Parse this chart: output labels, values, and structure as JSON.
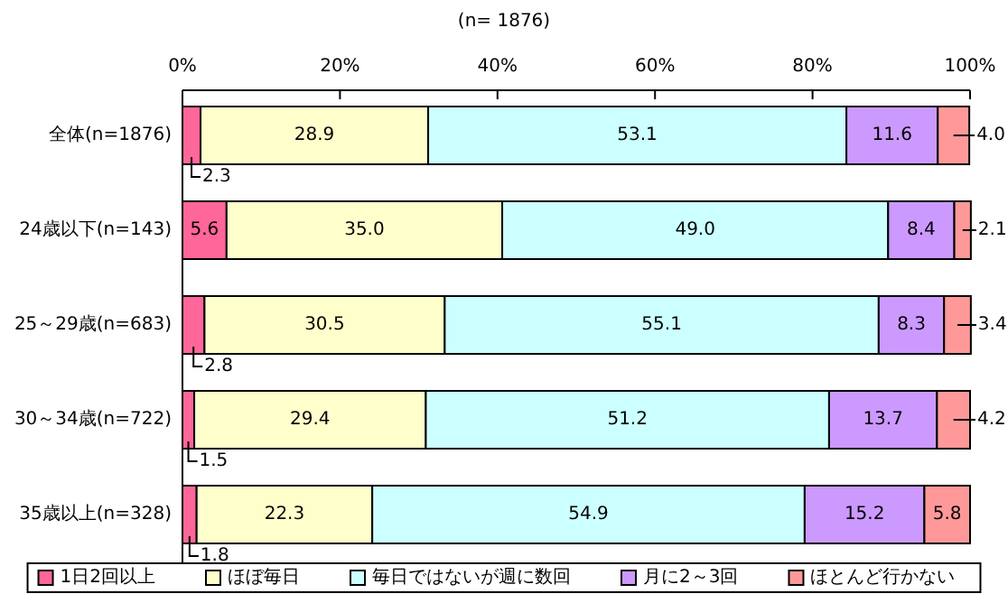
{
  "chart_data": {
    "type": "bar",
    "title": "(n= 1876)",
    "orientation": "horizontal",
    "stacked": true,
    "legend": "bottom",
    "grid": false,
    "categories": [
      "全体(n=1876)",
      "24歳以下(n=143)",
      "25～29歳(n=683)",
      "30～34歳(n=722)",
      "35歳以上(n=328)"
    ],
    "xlim": [
      0,
      100
    ],
    "xticks": [
      {
        "value": 0,
        "label": "0%"
      },
      {
        "value": 20,
        "label": "20%"
      },
      {
        "value": 40,
        "label": "40%"
      },
      {
        "value": 60,
        "label": "60%"
      },
      {
        "value": 80,
        "label": "80%"
      },
      {
        "value": 100,
        "label": "100%"
      }
    ],
    "series": [
      {
        "name": "1日2回以上",
        "color": "#ff6699",
        "values": [
          2.3,
          5.6,
          2.8,
          1.5,
          1.8
        ],
        "value_labels": [
          "2.3",
          "5.6",
          "2.8",
          "1.5",
          "1.8"
        ]
      },
      {
        "name": "ほぼ毎日",
        "color": "#ffffcc",
        "values": [
          28.9,
          35.0,
          30.5,
          29.4,
          22.3
        ],
        "value_labels": [
          "28.9",
          "35.0",
          "30.5",
          "29.4",
          "22.3"
        ]
      },
      {
        "name": "毎日ではないが週に数回",
        "color": "#ccffff",
        "values": [
          53.1,
          49.0,
          55.1,
          51.2,
          54.9
        ],
        "value_labels": [
          "53.1",
          "49.0",
          "55.1",
          "51.2",
          "54.9"
        ]
      },
      {
        "name": "月に2～3回",
        "color": "#cc99ff",
        "values": [
          11.6,
          8.4,
          8.3,
          13.7,
          15.2
        ],
        "value_labels": [
          "11.6",
          "8.4",
          "8.3",
          "13.7",
          "15.2"
        ]
      },
      {
        "name": "ほとんど行かない",
        "color": "#ff9999",
        "values": [
          4.0,
          2.1,
          3.4,
          4.2,
          5.8
        ],
        "value_labels": [
          "4.0",
          "2.1",
          "3.4",
          "4.2",
          "5.8"
        ]
      }
    ]
  }
}
